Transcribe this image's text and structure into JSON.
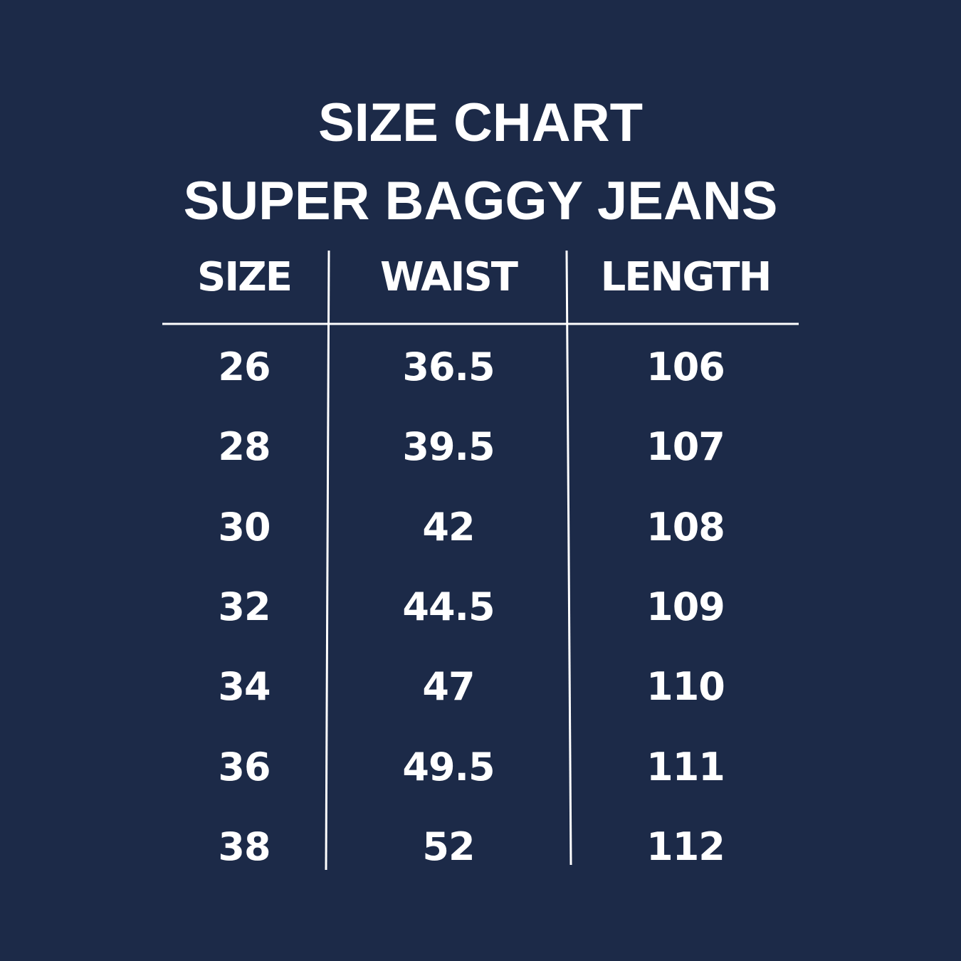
{
  "title_line1": "SIZE CHART",
  "title_line2": "SUPER BAGGY JEANS",
  "colors": {
    "background": "#1c2a48",
    "text": "#ffffff",
    "lines": "#ffffff"
  },
  "table": {
    "headers": [
      "SIZE",
      "WAIST",
      "LENGTH"
    ],
    "rows": [
      [
        "26",
        "36.5",
        "106"
      ],
      [
        "28",
        "39.5",
        "107"
      ],
      [
        "30",
        "42",
        "108"
      ],
      [
        "32",
        "44.5",
        "109"
      ],
      [
        "34",
        "47",
        "110"
      ],
      [
        "36",
        "49.5",
        "111"
      ],
      [
        "38",
        "52",
        "112"
      ]
    ]
  }
}
